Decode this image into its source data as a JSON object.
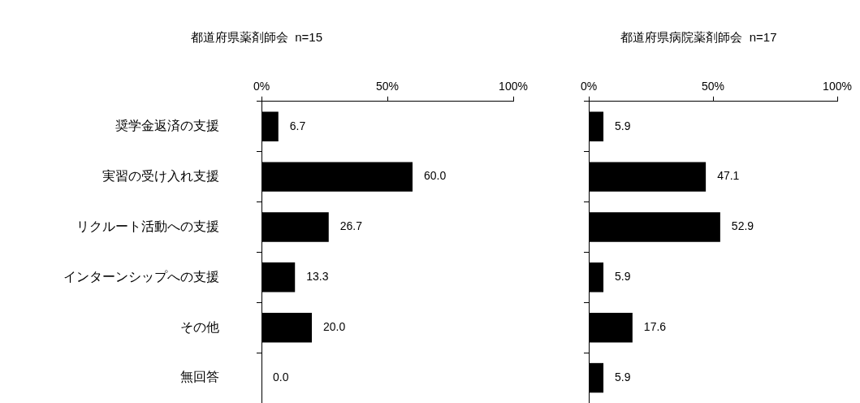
{
  "chart_data": [
    {
      "type": "bar",
      "orientation": "horizontal",
      "title": "都道府県薬剤師会  n=15",
      "categories": [
        "奨学金返済の支援",
        "実習の受け入れ支援",
        "リクルート活動への支援",
        "インターンシップへの支援",
        "その他",
        "無回答"
      ],
      "values": [
        6.7,
        60.0,
        26.7,
        13.3,
        20.0,
        0.0
      ],
      "color": "#000000",
      "value_labels": [
        "6.7",
        "60.0",
        "26.7",
        "13.3",
        "20.0",
        "0.0"
      ],
      "xlim": [
        0,
        100
      ],
      "xticks": [
        {
          "value": 0,
          "label": "0%"
        },
        {
          "value": 50,
          "label": "50%"
        },
        {
          "value": 100,
          "label": "100%"
        }
      ]
    },
    {
      "type": "bar",
      "orientation": "horizontal",
      "title": "都道府県病院薬剤師会  n=17",
      "categories": [
        null,
        null,
        null,
        null,
        null,
        null
      ],
      "values": [
        5.9,
        47.1,
        52.9,
        5.9,
        17.6,
        5.9
      ],
      "color": "#000000",
      "value_labels": [
        "5.9",
        "47.1",
        "52.9",
        "5.9",
        "17.6",
        "5.9"
      ],
      "xlim": [
        0,
        100
      ],
      "xticks": [
        {
          "value": 0,
          "label": "0%"
        },
        {
          "value": 50,
          "label": "50%"
        },
        {
          "value": 100,
          "label": "100%"
        }
      ],
      "tick_labels": "x"
    }
  ]
}
